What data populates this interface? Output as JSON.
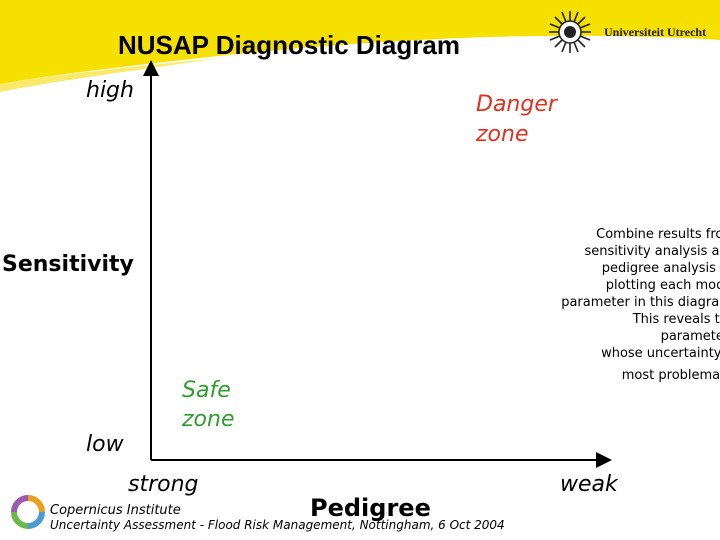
{
  "header": {
    "title": "NUSAP Diagnostic Diagram",
    "university": "Universiteit Utrecht"
  },
  "diagram": {
    "y_high": "high",
    "y_low": "low",
    "y_title": "Sensitivity",
    "x_left": "strong",
    "x_right": "weak",
    "x_title": "Pedigree",
    "danger_zone": [
      "Danger",
      "zone"
    ],
    "safe_zone": [
      "Safe",
      "zone"
    ],
    "note_lines": [
      "Combine results from",
      "sensitivity analysis and",
      "pedigree analysis by",
      "plotting each model",
      "parameter in this diagram.",
      "This reveals the",
      "parameters",
      "whose uncertainty is",
      "most problematic"
    ]
  },
  "footer": {
    "institute": "Copernicus Institute",
    "citation": "Uncertainty Assessment - Flood Risk Management, Nottingham, 6 Oct 2004"
  },
  "colors": {
    "banner": "#f6e000",
    "danger": "#e0301e",
    "safe": "#2f9e2f"
  }
}
